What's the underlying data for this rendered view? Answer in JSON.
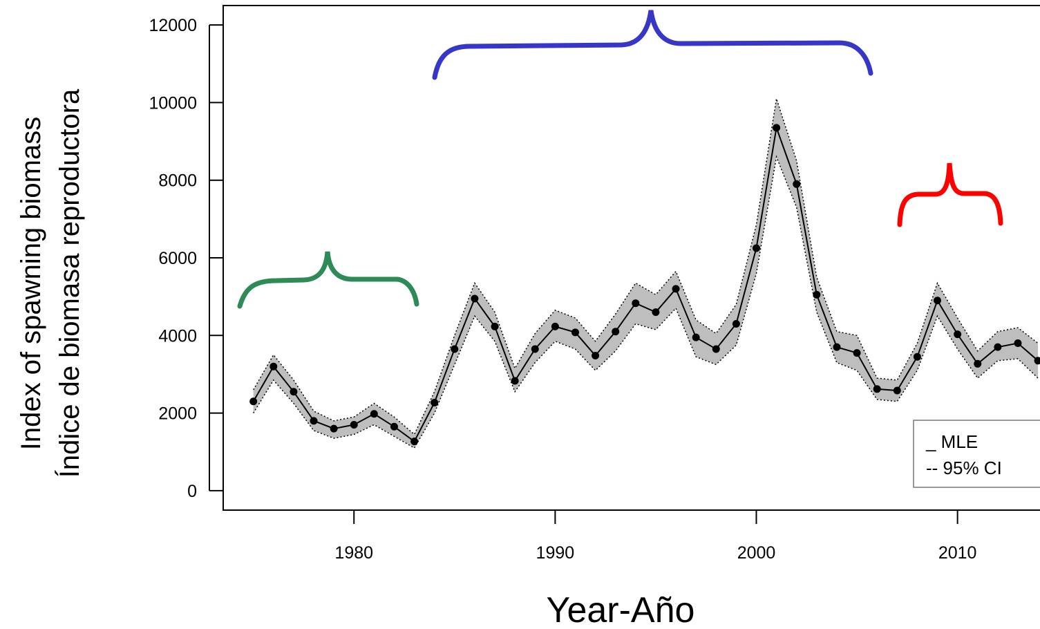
{
  "chart_data": {
    "type": "line",
    "x_label": "Year-Año",
    "y_label": [
      "Index of spawning biomass",
      "Índice de biomasa reproductora"
    ],
    "x": [
      1975,
      1976,
      1977,
      1978,
      1979,
      1980,
      1981,
      1982,
      1983,
      1984,
      1985,
      1986,
      1987,
      1988,
      1989,
      1990,
      1991,
      1992,
      1993,
      1994,
      1995,
      1996,
      1997,
      1998,
      1999,
      2000,
      2001,
      2002,
      2003,
      2004,
      2005,
      2006,
      2007,
      2008,
      2009,
      2010,
      2011,
      2012,
      2013,
      2014
    ],
    "series": [
      {
        "name": "_ MLE",
        "color": "#000000",
        "values": [
          2300,
          3200,
          2550,
          1800,
          1600,
          1700,
          1980,
          1650,
          1270,
          2270,
          3650,
          4950,
          4230,
          2830,
          3650,
          4230,
          4080,
          3480,
          4100,
          4830,
          4600,
          5200,
          3950,
          3650,
          4300,
          6250,
          9350,
          7900,
          5050,
          3700,
          3550,
          2620,
          2580,
          3450,
          4900,
          4030,
          3270,
          3700,
          3800,
          3350
        ]
      }
    ],
    "ci": {
      "name": "-- 95% CI",
      "color": "#bebebe",
      "lower": [
        2000,
        2850,
        2250,
        1550,
        1350,
        1450,
        1700,
        1400,
        1100,
        2000,
        3250,
        4500,
        3850,
        2550,
        3300,
        3850,
        3650,
        3100,
        3600,
        4300,
        4150,
        4700,
        3450,
        3250,
        3750,
        5600,
        8600,
        7300,
        4600,
        3300,
        3100,
        2350,
        2300,
        3100,
        4500,
        3650,
        2900,
        3350,
        3400,
        2900
      ],
      "upper": [
        2600,
        3500,
        2850,
        2050,
        1800,
        1900,
        2250,
        1900,
        1450,
        2550,
        4000,
        5350,
        4600,
        3150,
        4050,
        4650,
        4450,
        3850,
        4550,
        5350,
        5050,
        5650,
        4400,
        4050,
        4800,
        6850,
        10100,
        8500,
        5500,
        4100,
        4000,
        2900,
        2850,
        3800,
        5350,
        4450,
        3600,
        4100,
        4200,
        3800
      ]
    },
    "xlim": [
      1973.5,
      2014.1
    ],
    "xticks": [
      1980,
      1990,
      2000,
      2010
    ],
    "ylim": [
      -500,
      12500
    ],
    "yticks": [
      0,
      2000,
      4000,
      6000,
      8000,
      10000,
      12000
    ],
    "grid": false,
    "legend": "bottom-right"
  }
}
